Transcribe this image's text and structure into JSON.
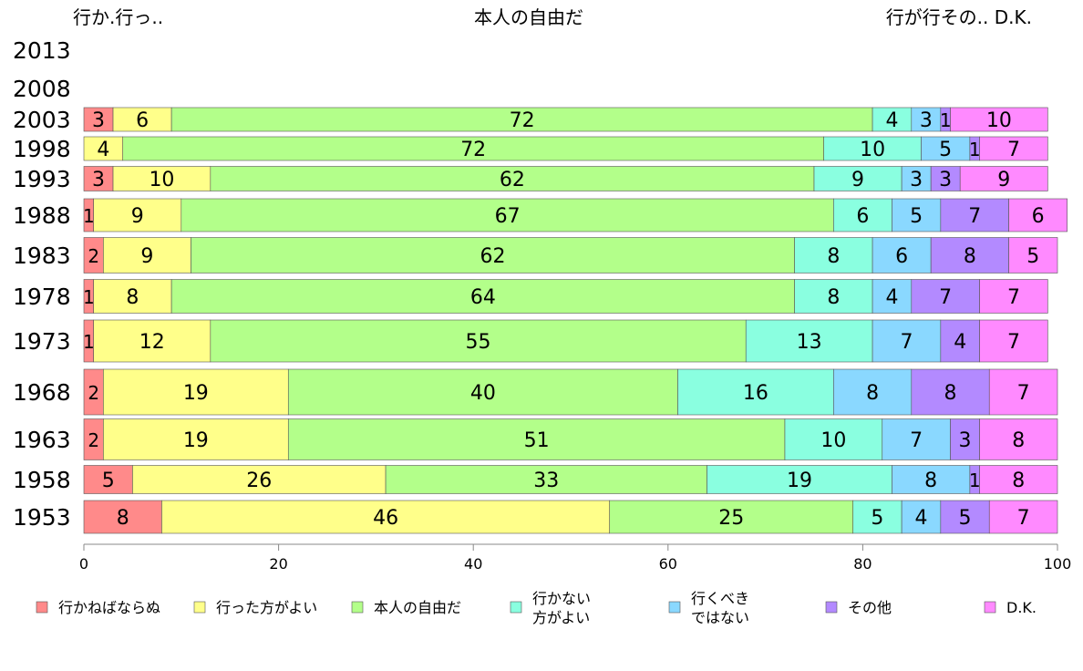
{
  "chart_data": {
    "type": "bar",
    "orientation": "horizontal",
    "stacked": true,
    "top_labels": [
      "行か.行っ..",
      "本人の自由だ",
      "行が行その.. D.K."
    ],
    "categories": [
      "2013",
      "2008",
      "2003",
      "1998",
      "1993",
      "1988",
      "1983",
      "1978",
      "1973",
      "1968",
      "1963",
      "1958",
      "1953"
    ],
    "series": [
      {
        "name": "行かねばならぬ",
        "color": "#ff8a8a",
        "values": [
          null,
          null,
          3,
          0,
          3,
          1,
          2,
          1,
          1,
          2,
          2,
          5,
          8
        ]
      },
      {
        "name": "行った方がよい",
        "color": "#ffff8a",
        "values": [
          null,
          null,
          6,
          4,
          10,
          9,
          9,
          8,
          12,
          19,
          19,
          26,
          46
        ]
      },
      {
        "name": "本人の自由だ",
        "color": "#b3ff8a",
        "values": [
          null,
          null,
          72,
          72,
          62,
          67,
          62,
          64,
          55,
          40,
          51,
          33,
          25
        ]
      },
      {
        "name": "行かない\n方がよい",
        "color": "#8affe0",
        "values": [
          null,
          null,
          4,
          10,
          9,
          6,
          8,
          8,
          13,
          16,
          10,
          19,
          5
        ]
      },
      {
        "name": "行くべき\nではない",
        "color": "#8ad8ff",
        "values": [
          null,
          null,
          3,
          5,
          3,
          5,
          6,
          4,
          7,
          8,
          7,
          8,
          4
        ]
      },
      {
        "name": "その他",
        "color": "#b38aff",
        "values": [
          null,
          null,
          1,
          1,
          3,
          7,
          8,
          7,
          4,
          8,
          3,
          1,
          5
        ]
      },
      {
        "name": "D.K.",
        "color": "#ff8aff",
        "values": [
          null,
          null,
          10,
          7,
          9,
          6,
          5,
          7,
          7,
          7,
          8,
          8,
          7
        ]
      }
    ],
    "xlim": [
      0,
      100
    ],
    "xticks": [
      0,
      20,
      40,
      60,
      80,
      100
    ],
    "legend_position": "bottom"
  }
}
